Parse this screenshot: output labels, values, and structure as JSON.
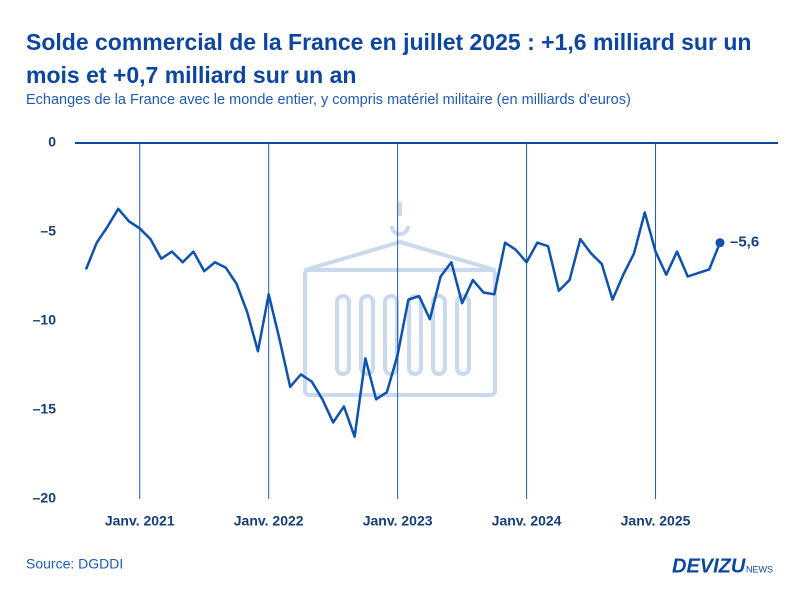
{
  "chart_data": {
    "type": "line",
    "title": "Solde commercial de la France en juillet 2025 : +1,6 milliard sur un mois et +0,7 milliard sur un an",
    "subtitle": "Echanges de la France avec le monde entier, y compris matériel militaire (en milliards d'euros)",
    "source": "Source: DGDDI",
    "brand": "DEVIZU",
    "brand_suffix": "NEWS",
    "color": "#0d52b0",
    "x": [
      "2020-08",
      "2020-09",
      "2020-10",
      "2020-11",
      "2020-12",
      "2021-01",
      "2021-02",
      "2021-03",
      "2021-04",
      "2021-05",
      "2021-06",
      "2021-07",
      "2021-08",
      "2021-09",
      "2021-10",
      "2021-11",
      "2021-12",
      "2022-01",
      "2022-02",
      "2022-03",
      "2022-04",
      "2022-05",
      "2022-06",
      "2022-07",
      "2022-08",
      "2022-09",
      "2022-10",
      "2022-11",
      "2022-12",
      "2023-01",
      "2023-02",
      "2023-03",
      "2023-04",
      "2023-05",
      "2023-06",
      "2023-07",
      "2023-08",
      "2023-09",
      "2023-10",
      "2023-11",
      "2023-12",
      "2024-01",
      "2024-02",
      "2024-03",
      "2024-04",
      "2024-05",
      "2024-06",
      "2024-07",
      "2024-08",
      "2024-09",
      "2024-10",
      "2024-11",
      "2024-12",
      "2025-01",
      "2025-02",
      "2025-03",
      "2025-04",
      "2025-05",
      "2025-06",
      "2025-07"
    ],
    "values": [
      -7.1,
      -5.6,
      -4.7,
      -3.7,
      -4.4,
      -4.8,
      -5.4,
      -6.5,
      -6.1,
      -6.7,
      -6.1,
      -7.2,
      -6.7,
      -7.0,
      -7.9,
      -9.5,
      -11.7,
      -8.5,
      -11.0,
      -13.7,
      -13.0,
      -13.4,
      -14.4,
      -15.7,
      -14.8,
      -16.5,
      -12.1,
      -14.4,
      -14.0,
      -11.9,
      -8.8,
      -8.6,
      -9.9,
      -7.5,
      -6.7,
      -9.0,
      -7.7,
      -8.4,
      -8.5,
      -5.6,
      -6.0,
      -6.7,
      -5.6,
      -5.8,
      -8.3,
      -7.7,
      -5.4,
      -6.2,
      -6.8,
      -8.8,
      -7.4,
      -6.2,
      -3.9,
      -6.1,
      -7.4,
      -6.1,
      -7.5,
      -7.3,
      -7.1,
      -5.6
    ],
    "value_labels": [
      null,
      null,
      null,
      null,
      null,
      null,
      null,
      null,
      null,
      null,
      null,
      null,
      null,
      null,
      null,
      null,
      null,
      null,
      null,
      null,
      null,
      null,
      null,
      null,
      null,
      null,
      null,
      null,
      null,
      null,
      null,
      null,
      null,
      null,
      null,
      null,
      null,
      null,
      null,
      null,
      null,
      null,
      null,
      null,
      null,
      null,
      null,
      null,
      null,
      null,
      null,
      null,
      null,
      null,
      null,
      null,
      null,
      null,
      null,
      "–5,6"
    ],
    "xlim": [
      "2020-08",
      "2025-07"
    ],
    "xticks": [
      {
        "value": "2021-01",
        "label": "Janv. 2021"
      },
      {
        "value": "2022-01",
        "label": "Janv. 2022"
      },
      {
        "value": "2023-01",
        "label": "Janv. 2023"
      },
      {
        "value": "2024-01",
        "label": "Janv. 2024"
      },
      {
        "value": "2025-01",
        "label": "Janv. 2025"
      }
    ],
    "ylim": [
      -20,
      0
    ],
    "yticks": [
      0,
      {
        "value": -5,
        "label": "–5"
      },
      {
        "value": -10,
        "label": "–10"
      },
      {
        "value": -15,
        "label": "–15"
      },
      {
        "value": -20,
        "label": "–20"
      }
    ],
    "grid": "x"
  }
}
